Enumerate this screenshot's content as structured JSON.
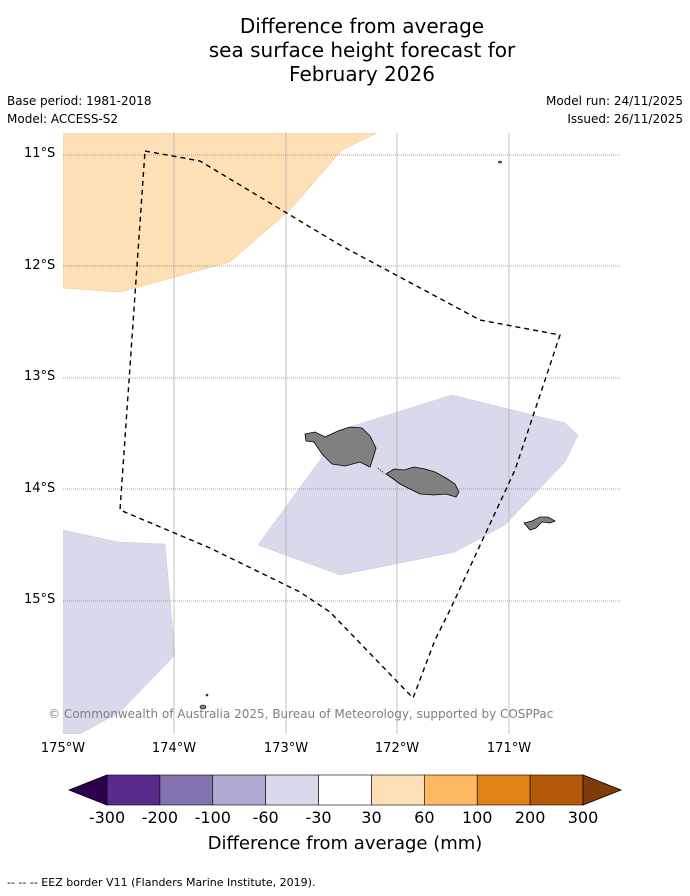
{
  "title": {
    "line1": "Difference from average",
    "line2": "sea surface height forecast for",
    "line3": "February 2026"
  },
  "meta": {
    "base_period": "Base period: 1981-2018",
    "model": "Model: ACCESS-S2",
    "model_run": "Model run: 24/11/2025",
    "issued": "Issued: 26/11/2025"
  },
  "map": {
    "lat_labels": [
      "11°S",
      "12°S",
      "13°S",
      "14°S",
      "15°S"
    ],
    "lon_labels": [
      "175°W",
      "174°W",
      "173°W",
      "172°W",
      "171°W"
    ],
    "copyright": "© Commonwealth of Australia 2025, Bureau of Meteorology, supported by COSPPac",
    "regions": [
      {
        "name": "sea-level-30-to-60-mm",
        "category": "30 to 60",
        "color": "#fde0b6"
      },
      {
        "name": "sea-level-minus-60-to-minus-30-mm",
        "category": "-60 to -30",
        "color": "#d8d9ea"
      }
    ],
    "land_color": "#808080"
  },
  "colorbar": {
    "title": "Difference from average (mm)",
    "ticks": [
      "-300",
      "-200",
      "-100",
      "-60",
      "-30",
      "30",
      "60",
      "100",
      "200",
      "300"
    ],
    "colors": [
      "#5a2a8a",
      "#8272ae",
      "#b0a9d2",
      "#d8d9ea",
      "#ffffff",
      "#fde0b6",
      "#fdb863",
      "#e08214",
      "#b35806"
    ],
    "extend_low_color": "#2d004b",
    "extend_high_color": "#7f3b08"
  },
  "footnote": "--  --  -- EEZ border V11 (Flanders Marine Institute, 2019)."
}
